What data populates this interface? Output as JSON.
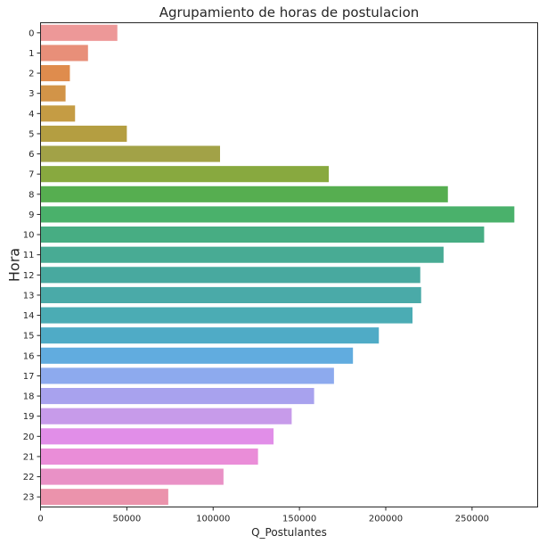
{
  "chart_data": {
    "type": "bar",
    "orientation": "horizontal",
    "title": "Agrupamiento de horas de postulacion",
    "xlabel": "Q_Postulantes",
    "ylabel": "Hora",
    "categories": [
      "0",
      "1",
      "2",
      "3",
      "4",
      "5",
      "6",
      "7",
      "8",
      "9",
      "10",
      "11",
      "12",
      "13",
      "14",
      "15",
      "16",
      "17",
      "18",
      "19",
      "20",
      "21",
      "22",
      "23"
    ],
    "values": [
      44500,
      27500,
      17000,
      14500,
      20000,
      50000,
      104000,
      167000,
      236000,
      274500,
      257000,
      233500,
      220000,
      220500,
      215500,
      196000,
      181000,
      170000,
      158500,
      145500,
      135000,
      126000,
      106000,
      74000
    ],
    "colors": [
      "#ed9898",
      "#e88f79",
      "#df8c4d",
      "#d29448",
      "#c59c44",
      "#b49e41",
      "#a2a247",
      "#88a93f",
      "#56ae50",
      "#4ab16b",
      "#47ad83",
      "#48ab94",
      "#48a99f",
      "#4aaaa8",
      "#4bacb4",
      "#4fabc6",
      "#61acdf",
      "#8daaee",
      "#a8a2ee",
      "#c79bea",
      "#e18ee8",
      "#ea8dd8",
      "#e991c6",
      "#eb93ac"
    ],
    "xlim": [
      0,
      288000
    ],
    "xticks": [
      0,
      50000,
      100000,
      150000,
      200000,
      250000
    ],
    "xtick_labels": [
      "0",
      "50000",
      "100000",
      "150000",
      "200000",
      "250000"
    ],
    "grid": false,
    "legend": "none"
  }
}
